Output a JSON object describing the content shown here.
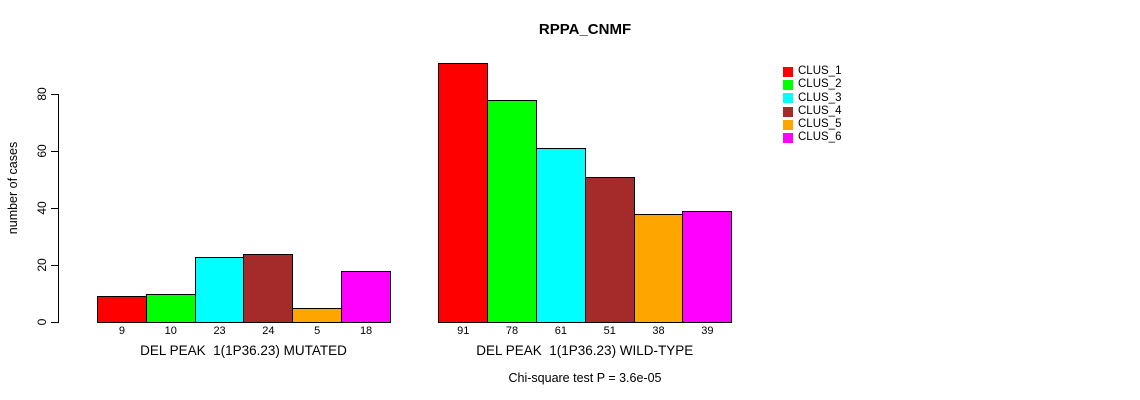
{
  "chart_data": {
    "type": "bar",
    "title": "RPPA_CNMF",
    "ylabel": "number of cases",
    "xlabel": "",
    "ylim": [
      0,
      91
    ],
    "yticks": [
      0,
      20,
      40,
      60,
      80
    ],
    "grid": false,
    "legend_position": "right",
    "categories": [
      "DEL PEAK  1(1P36.23) MUTATED",
      "DEL PEAK  1(1P36.23) WILD-TYPE"
    ],
    "series": [
      {
        "name": "CLUS_1",
        "color": "#FF0000",
        "values": [
          9,
          91
        ]
      },
      {
        "name": "CLUS_2",
        "color": "#00FF00",
        "values": [
          10,
          78
        ]
      },
      {
        "name": "CLUS_3",
        "color": "#00FFFF",
        "values": [
          23,
          61
        ]
      },
      {
        "name": "CLUS_4",
        "color": "#A52A2A",
        "values": [
          24,
          51
        ]
      },
      {
        "name": "CLUS_5",
        "color": "#FFA500",
        "values": [
          5,
          38
        ]
      },
      {
        "name": "CLUS_6",
        "color": "#FF00FF",
        "values": [
          18,
          39
        ]
      }
    ],
    "bar_value_labels": [
      [
        "9",
        "10",
        "23",
        "24",
        "5",
        "18"
      ],
      [
        "91",
        "78",
        "61",
        "51",
        "38",
        "39"
      ]
    ],
    "annotation": "Chi-square test P = 3.6e-05",
    "axis_color": "#000000",
    "bar_border_color": "#000000"
  }
}
